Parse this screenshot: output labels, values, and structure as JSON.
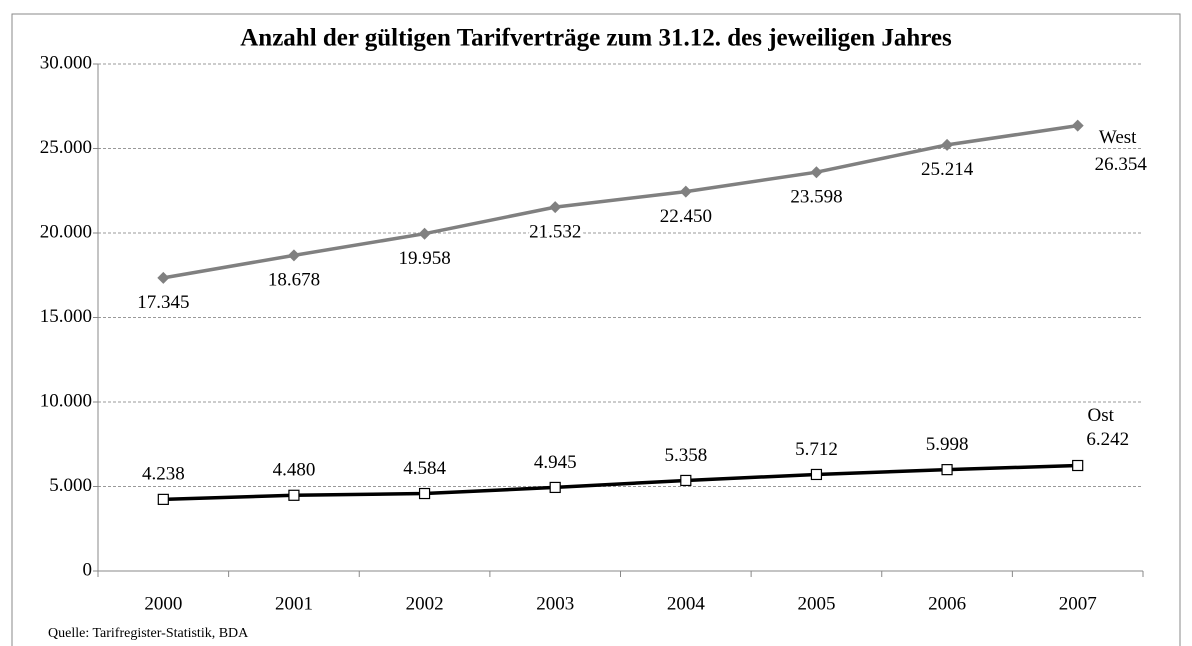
{
  "chart_data": {
    "type": "line",
    "title": "Anzahl der gültigen Tarifverträge zum 31.12. des jeweiligen Jahres",
    "source": "Quelle: Tarifregister-Statistik, BDA",
    "categories": [
      "2000",
      "2001",
      "2002",
      "2003",
      "2004",
      "2005",
      "2006",
      "2007"
    ],
    "series": [
      {
        "name": "West",
        "color": "#808080",
        "marker": "diamond",
        "values": [
          17345,
          18678,
          19958,
          21532,
          22450,
          23598,
          25214,
          26354
        ],
        "value_labels": [
          "17.345",
          "18.678",
          "19.958",
          "21.532",
          "22.450",
          "23.598",
          "25.214",
          "26.354"
        ]
      },
      {
        "name": "Ost",
        "color": "#000000",
        "marker": "square",
        "values": [
          4238,
          4480,
          4584,
          4945,
          5358,
          5712,
          5998,
          6242
        ],
        "value_labels": [
          "4.238",
          "4.480",
          "4.584",
          "4.945",
          "5.358",
          "5.712",
          "5.998",
          "6.242"
        ]
      }
    ],
    "ylim": [
      0,
      30000
    ],
    "yticks": [
      0,
      {
        "value": 5000,
        "label": "5.000"
      },
      {
        "value": 10000,
        "label": "10.000"
      },
      {
        "value": 15000,
        "label": "15.000"
      },
      {
        "value": 20000,
        "label": "20.000"
      },
      {
        "value": 25000,
        "label": "25.000"
      },
      {
        "value": 30000,
        "label": "30.000"
      }
    ],
    "grid": true
  }
}
